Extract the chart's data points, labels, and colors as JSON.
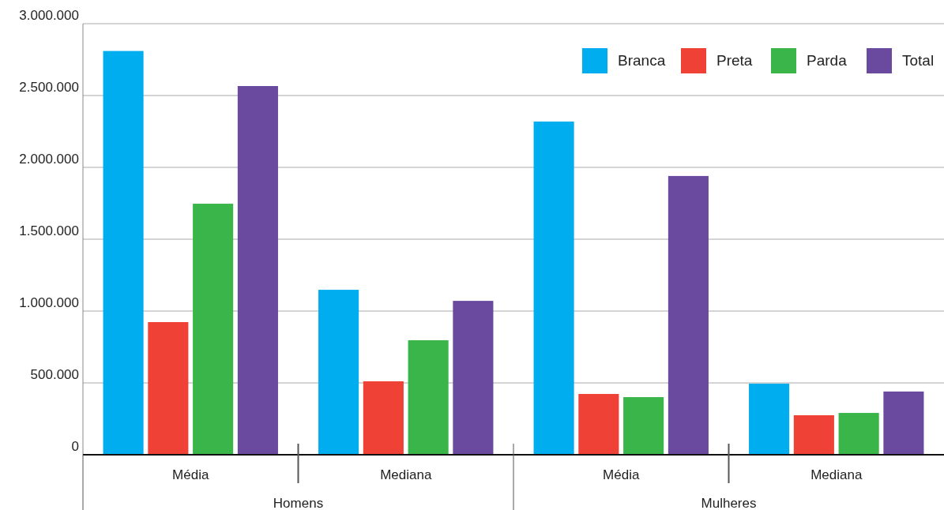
{
  "chart_data": {
    "type": "bar",
    "categories": [
      "Média",
      "Mediana",
      "Média",
      "Mediana"
    ],
    "series": [
      {
        "name": "Branca",
        "color": "#00aeef",
        "values": [
          2810000,
          1148000,
          2319000,
          495000
        ]
      },
      {
        "name": "Preta",
        "color": "#ef4136",
        "values": [
          923000,
          511000,
          423000,
          275000
        ]
      },
      {
        "name": "Parda",
        "color": "#39b54a",
        "values": [
          1747000,
          797000,
          401000,
          291000
        ]
      },
      {
        "name": "Total",
        "color": "#6a4a9e",
        "values": [
          2566000,
          1071000,
          1940000,
          440000
        ]
      }
    ],
    "ylim": [
      0,
      3000000
    ],
    "yticks": [
      {
        "value": 0,
        "label": "0"
      },
      {
        "value": 500000,
        "label": "500.000"
      },
      {
        "value": 1000000,
        "label": "1.000.000"
      },
      {
        "value": 1500000,
        "label": "1.500.000"
      },
      {
        "value": 2000000,
        "label": "2.000.000"
      },
      {
        "value": 2500000,
        "label": "2.500.000"
      },
      {
        "value": 3000000,
        "label": "3.000.000"
      }
    ],
    "grid": "y",
    "legend": "top right",
    "annotations": [
      "Homens",
      "Mulheres"
    ]
  }
}
